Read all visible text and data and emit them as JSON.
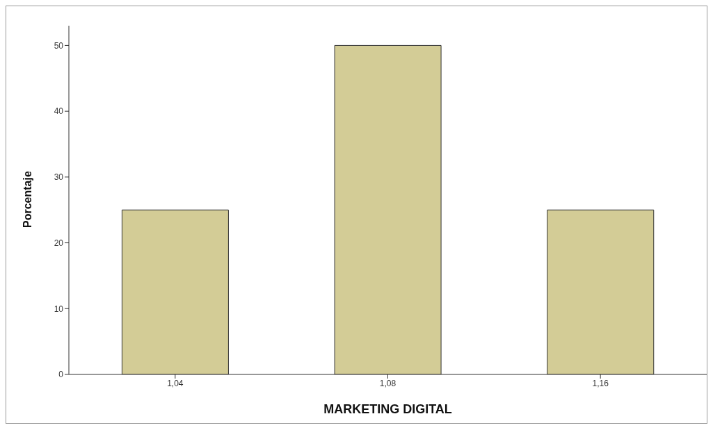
{
  "chart_data": {
    "type": "bar",
    "xlabel": "MARKETING DIGITAL",
    "ylabel": "Porcentaje",
    "categories": [
      "1,04",
      "1,08",
      "1,16"
    ],
    "values": [
      25,
      50,
      25
    ],
    "color": "#d3cc96",
    "ylim": [
      0,
      53
    ],
    "yticks": [
      0,
      10,
      20,
      30,
      40,
      50
    ],
    "grid": false
  }
}
